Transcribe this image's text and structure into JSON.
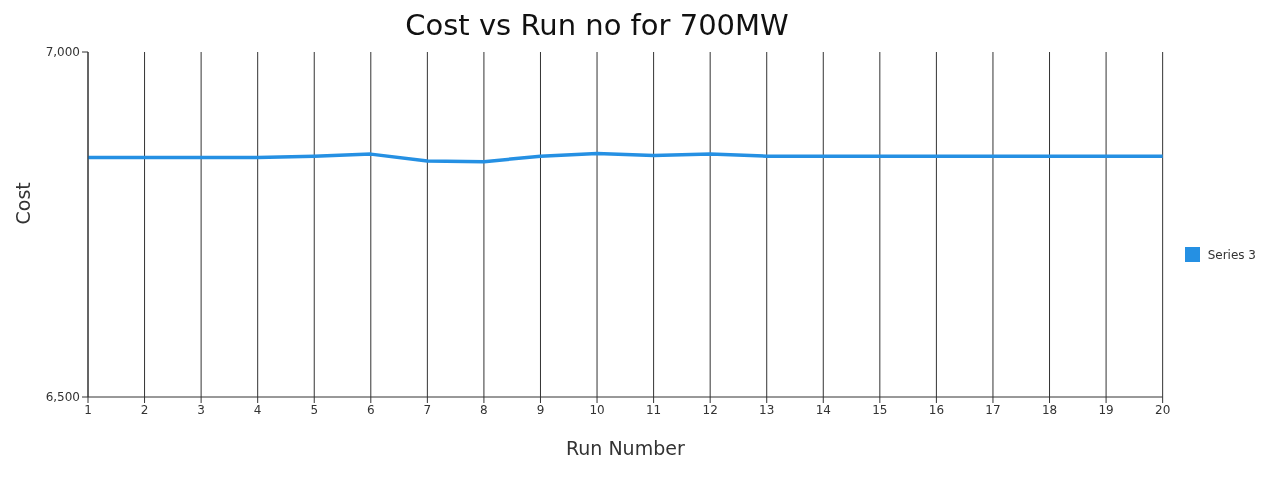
{
  "chart_data": {
    "type": "line",
    "title": "Cost vs Run no for 700MW",
    "xlabel": "Run Number",
    "ylabel": "Cost",
    "x": [
      1,
      2,
      3,
      4,
      5,
      6,
      7,
      8,
      9,
      10,
      11,
      12,
      13,
      14,
      15,
      16,
      17,
      18,
      19,
      20
    ],
    "series": [
      {
        "name": "Series 3",
        "color": "#2590e3",
        "values": [
          6847,
          6847,
          6847,
          6847,
          6849,
          6852,
          6842,
          6841,
          6849,
          6853,
          6850,
          6852,
          6849,
          6849,
          6849,
          6849,
          6849,
          6849,
          6849,
          6849
        ]
      }
    ],
    "xlim": [
      1,
      20
    ],
    "xticks": [
      1,
      2,
      3,
      4,
      5,
      6,
      7,
      8,
      9,
      10,
      11,
      12,
      13,
      14,
      15,
      16,
      17,
      18,
      19,
      20
    ],
    "ylim": [
      6500,
      7000
    ],
    "yticks": [
      {
        "value": 6500,
        "label": "6,500"
      },
      {
        "value": 7000,
        "label": "7,000"
      }
    ],
    "grid": "x",
    "legend": "right",
    "marker": "none",
    "line_style": "solid"
  }
}
